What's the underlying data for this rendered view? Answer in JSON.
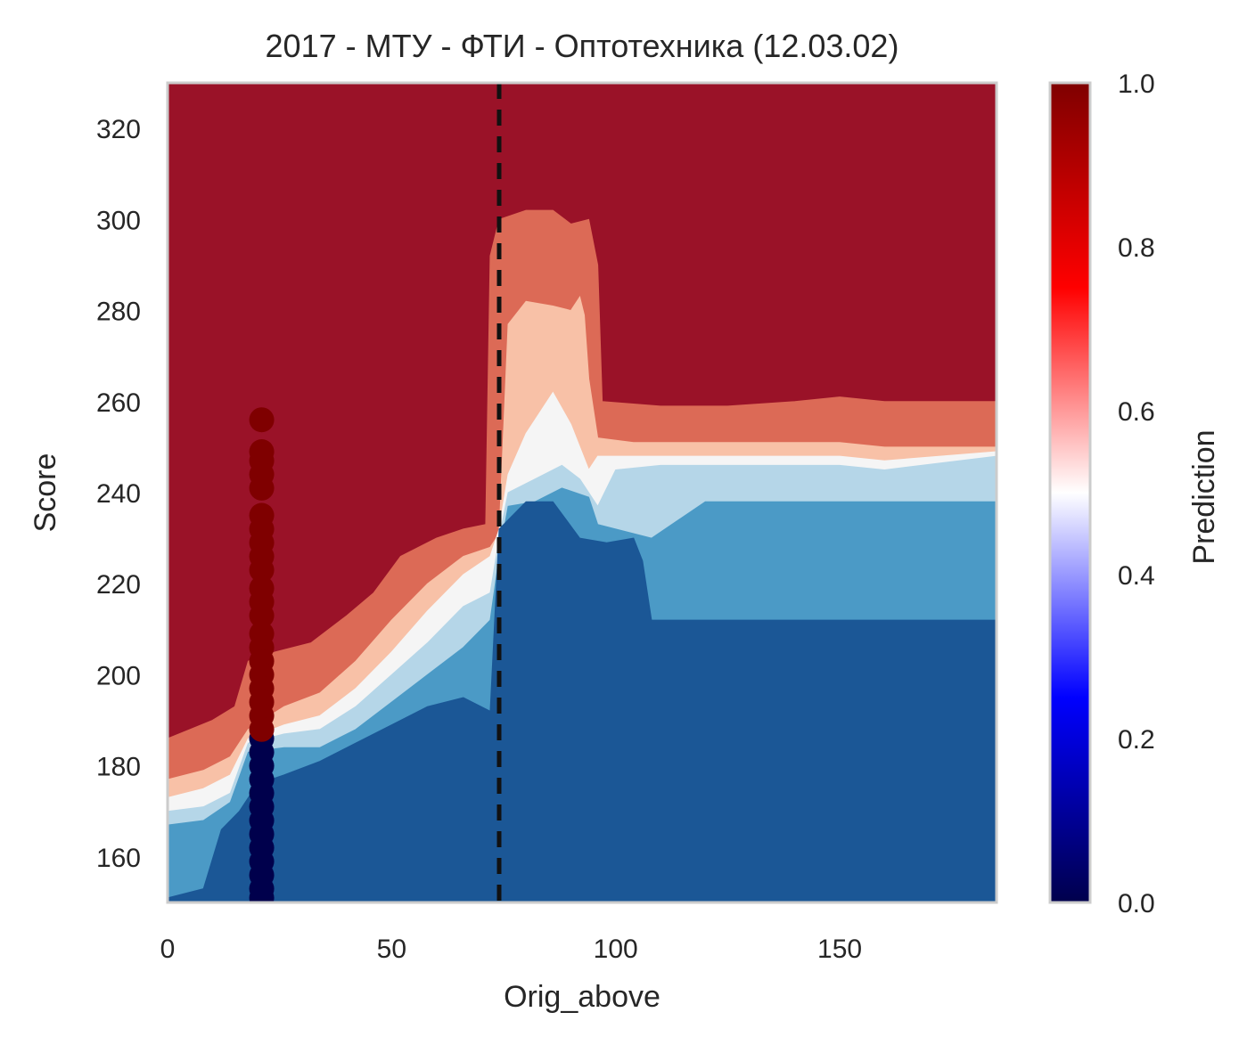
{
  "chart_data": {
    "type": "heatmap",
    "title": "2017 - МТУ - ФТИ - Оптотехника (12.03.02)",
    "xlabel": "Orig_above",
    "ylabel": "Score",
    "xlim": [
      0,
      185
    ],
    "ylim": [
      150,
      330
    ],
    "x_ticks": [
      "0",
      "50",
      "100",
      "150"
    ],
    "x_tick_values": [
      0,
      50,
      100,
      150
    ],
    "y_ticks": [
      "160",
      "180",
      "200",
      "220",
      "240",
      "260",
      "280",
      "300",
      "320"
    ],
    "y_tick_values": [
      160,
      180,
      200,
      220,
      240,
      260,
      280,
      300,
      320
    ],
    "grid": false,
    "colorbar": {
      "label": "Prediction",
      "range": [
        0,
        1
      ],
      "ticks": [
        "0.0",
        "0.2",
        "0.4",
        "0.6",
        "0.8",
        "1.0"
      ],
      "tick_values": [
        0,
        0.2,
        0.4,
        0.6,
        0.8,
        1.0
      ],
      "colormap": "seismic"
    },
    "contour_colormap": "RdBu_r",
    "contour_levels": [
      {
        "range": [
          0.0,
          0.2
        ],
        "color": "#1b5796"
      },
      {
        "range": [
          0.2,
          0.35
        ],
        "color": "#4b9ac6"
      },
      {
        "range": [
          0.35,
          0.45
        ],
        "color": "#b5d6e8"
      },
      {
        "range": [
          0.45,
          0.55
        ],
        "color": "#f5f5f5"
      },
      {
        "range": [
          0.55,
          0.65
        ],
        "color": "#f8c1a7"
      },
      {
        "range": [
          0.65,
          0.8
        ],
        "color": "#dc6a56"
      },
      {
        "range": [
          0.8,
          1.0
        ],
        "color": "#9a1228"
      }
    ],
    "vertical_line": {
      "x": 74,
      "style": "dashed",
      "color": "#111111"
    },
    "points": {
      "x": 21,
      "admitted": {
        "prediction": 1,
        "y": [
          256,
          249,
          247,
          244,
          241,
          235,
          232,
          229,
          226,
          223,
          219,
          216,
          213,
          209,
          206,
          203,
          200,
          197,
          194,
          191,
          188
        ]
      },
      "rejected": {
        "prediction": 0,
        "y": [
          186,
          183,
          180,
          177,
          174,
          171,
          168,
          165,
          162,
          159,
          156,
          153,
          151
        ]
      }
    }
  }
}
